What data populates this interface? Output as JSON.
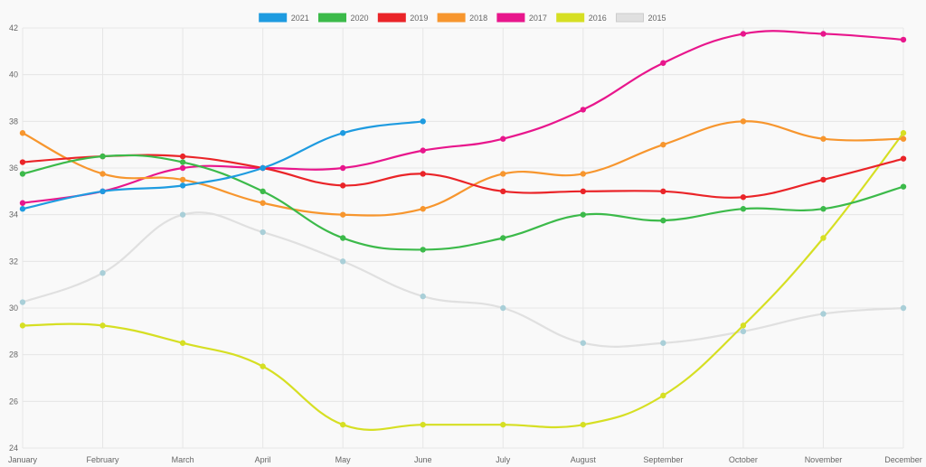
{
  "chart_data": {
    "type": "line",
    "title": "",
    "xlabel": "",
    "ylabel": "",
    "ylim": [
      24,
      42
    ],
    "y_ticks": [
      24,
      26,
      28,
      30,
      32,
      34,
      36,
      38,
      40,
      42
    ],
    "grid": true,
    "legend_position": "top-center",
    "categories": [
      "January",
      "February",
      "March",
      "April",
      "May",
      "June",
      "July",
      "August",
      "September",
      "October",
      "November",
      "December"
    ],
    "series": [
      {
        "name": "2021",
        "color": "#1e9be0",
        "values": [
          34.25,
          35.0,
          35.25,
          36.0,
          37.5,
          38.0,
          null,
          null,
          null,
          null,
          null,
          null
        ]
      },
      {
        "name": "2020",
        "color": "#3cba4a",
        "values": [
          35.75,
          36.5,
          36.25,
          35.0,
          33.0,
          32.5,
          33.0,
          34.0,
          33.75,
          34.25,
          34.25,
          35.2
        ]
      },
      {
        "name": "2019",
        "color": "#ea2428",
        "values": [
          36.25,
          36.5,
          36.5,
          36.0,
          35.25,
          35.75,
          35.0,
          35.0,
          35.0,
          34.75,
          35.5,
          36.4
        ]
      },
      {
        "name": "2018",
        "color": "#f7962e",
        "values": [
          37.5,
          35.75,
          35.5,
          34.5,
          34.0,
          34.25,
          35.75,
          35.75,
          37.0,
          38.0,
          37.25,
          37.25
        ]
      },
      {
        "name": "2017",
        "color": "#e8168c",
        "values": [
          34.5,
          35.0,
          36.0,
          36.0,
          36.0,
          36.75,
          37.25,
          38.5,
          40.5,
          41.75,
          41.75,
          41.5
        ]
      },
      {
        "name": "2016",
        "color": "#d6df23",
        "values": [
          29.25,
          29.25,
          28.5,
          27.5,
          25.0,
          25.0,
          25.0,
          25.0,
          26.25,
          29.25,
          33.0,
          37.5
        ]
      },
      {
        "name": "2015",
        "color": "#e0e0e0",
        "point_color": "#a9cfd8",
        "values": [
          30.25,
          31.5,
          34.0,
          33.25,
          32.0,
          30.5,
          30.0,
          28.5,
          28.5,
          29.0,
          29.75,
          30.0
        ]
      }
    ]
  }
}
